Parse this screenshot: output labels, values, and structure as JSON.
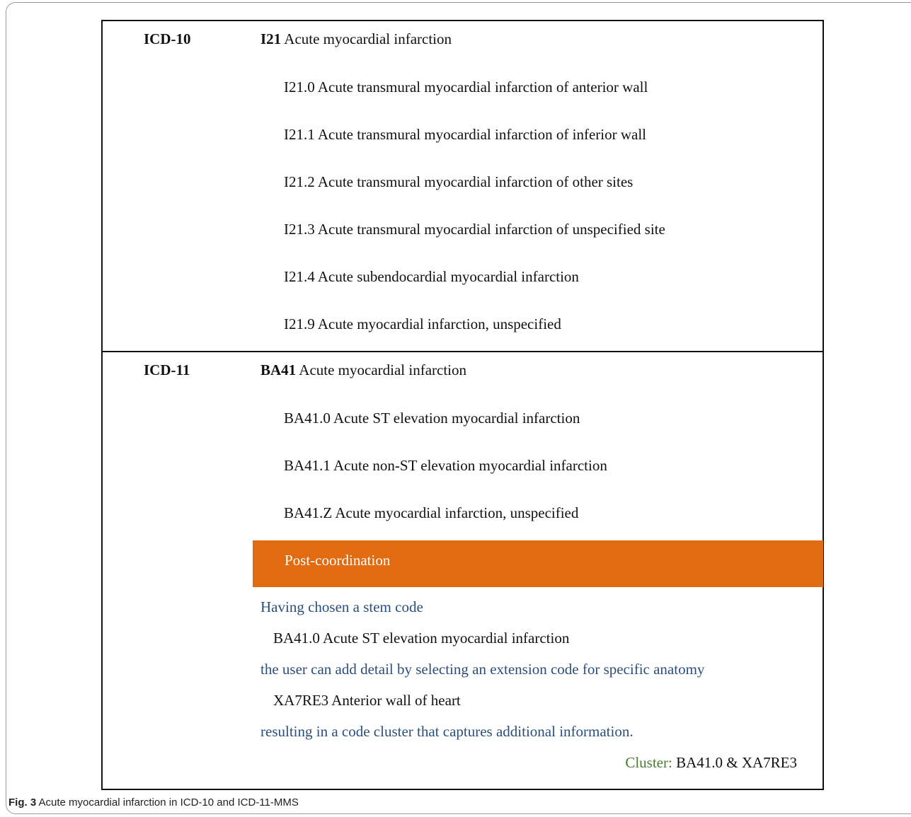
{
  "icd10": {
    "label": "ICD-10",
    "head_code": "I21",
    "head_title": "Acute myocardial infarction",
    "subcodes": [
      "I21.0 Acute transmural myocardial infarction of anterior wall",
      "I21.1 Acute transmural myocardial infarction of inferior wall",
      "I21.2 Acute transmural myocardial infarction of other sites",
      "I21.3 Acute transmural myocardial infarction of unspecified site",
      "I21.4 Acute subendocardial myocardial infarction",
      "I21.9 Acute myocardial infarction, unspecified"
    ]
  },
  "icd11": {
    "label": "ICD-11",
    "head_code": "BA41",
    "head_title": "Acute myocardial infarction",
    "subcodes": [
      "BA41.0 Acute ST elevation myocardial infarction",
      "BA41.1 Acute non-ST elevation myocardial infarction",
      "BA41.Z Acute myocardial infarction, unspecified"
    ],
    "postcoordination": {
      "title": "Post-coordination",
      "step1": "Having chosen a stem code",
      "stem_code": "BA41.0 Acute ST elevation myocardial infarction",
      "step2": "the user can add detail by selecting an extension code for specific anatomy",
      "extension_code": "XA7RE3 Anterior wall of heart",
      "step3": "resulting in a code cluster that captures additional information.",
      "cluster_label": "Cluster:",
      "cluster_value": "BA41.0 & XA7RE3"
    }
  },
  "caption": {
    "fig": "Fig. 3",
    "text": "Acute myocardial infarction in ICD-10 and ICD-11-MMS"
  },
  "colors": {
    "accent_orange": "#e06b10",
    "note_blue": "#2b4f7b",
    "cluster_green": "#4a7a2c"
  }
}
